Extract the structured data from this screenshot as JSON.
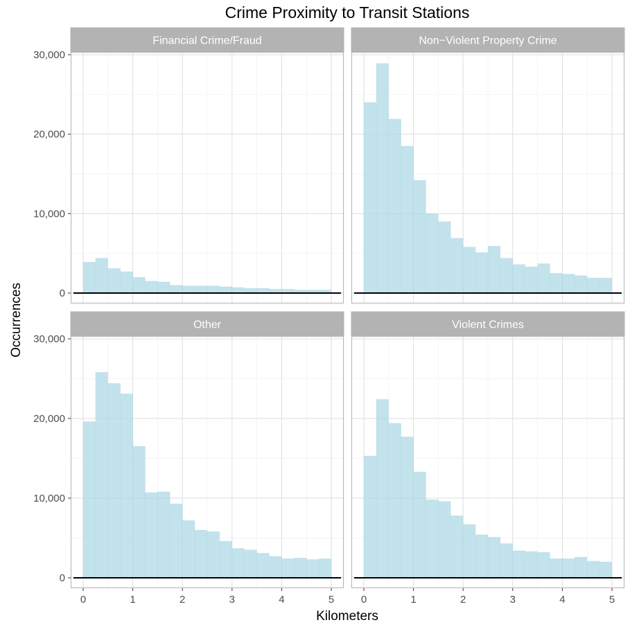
{
  "chart_data": {
    "type": "bar",
    "title": "Crime Proximity to Transit Stations",
    "xlabel": "Kilometers",
    "ylabel": "Occurrences",
    "xlim": [
      0,
      5
    ],
    "ylim": [
      0,
      30000
    ],
    "x_ticks": [
      "0",
      "1",
      "2",
      "3",
      "4",
      "5"
    ],
    "y_ticks": [
      "0",
      "10,000",
      "20,000",
      "30,000"
    ],
    "bin_width": 0.25,
    "bin_starts": [
      0,
      0.25,
      0.5,
      0.75,
      1.0,
      1.25,
      1.5,
      1.75,
      2.0,
      2.25,
      2.5,
      2.75,
      3.0,
      3.25,
      3.5,
      3.75,
      4.0,
      4.25,
      4.5,
      4.75
    ],
    "fill_color": "#add8e6",
    "grid": true,
    "panels": [
      {
        "name": "Financial Crime/Fraud",
        "values": [
          3900,
          4400,
          3100,
          2700,
          2000,
          1500,
          1400,
          1000,
          900,
          900,
          900,
          800,
          700,
          600,
          600,
          500,
          500,
          400,
          400,
          400
        ]
      },
      {
        "name": "Non−Violent Property Crime",
        "values": [
          24000,
          28900,
          21900,
          18500,
          14200,
          10000,
          9000,
          6900,
          5800,
          5100,
          5900,
          4400,
          3600,
          3300,
          3700,
          2500,
          2400,
          2200,
          1900,
          1900
        ]
      },
      {
        "name": "Other",
        "values": [
          19600,
          25800,
          24400,
          23100,
          16500,
          10700,
          10800,
          9300,
          7200,
          6000,
          5800,
          4600,
          3700,
          3500,
          3100,
          2700,
          2400,
          2500,
          2300,
          2400
        ]
      },
      {
        "name": "Violent Crimes",
        "values": [
          15300,
          22400,
          19400,
          17700,
          13300,
          9800,
          9600,
          7800,
          6700,
          5400,
          5100,
          4300,
          3400,
          3300,
          3200,
          2400,
          2400,
          2600,
          2100,
          2000
        ]
      }
    ]
  }
}
